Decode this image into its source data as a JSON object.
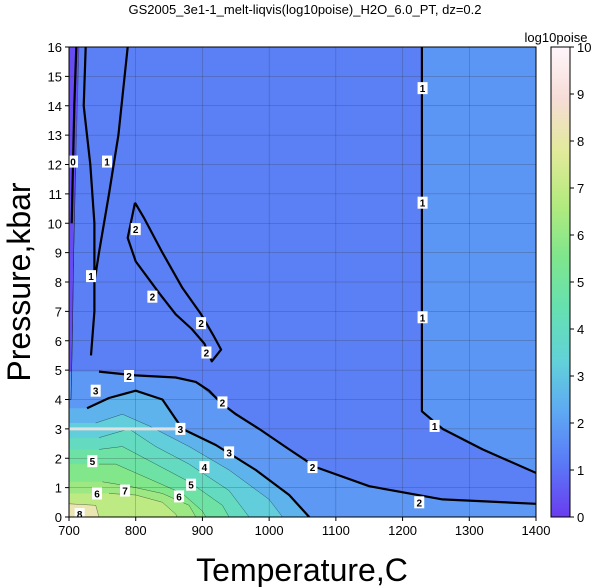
{
  "chart_data": {
    "type": "heatmap",
    "title": "GS2005_3e1-1_melt-liqvis(log10poise)_H2O_6.0_PT, dz=0.2",
    "xlabel": "Temperature,C",
    "ylabel": "Pressure,kbar",
    "xlim": [
      700,
      1400
    ],
    "ylim": [
      0,
      16
    ],
    "xticks": [
      700,
      800,
      900,
      1000,
      1100,
      1200,
      1300,
      1400
    ],
    "yticks": [
      0,
      1,
      2,
      3,
      4,
      5,
      6,
      7,
      8,
      9,
      10,
      11,
      12,
      13,
      14,
      15,
      16
    ],
    "grid": true,
    "colorbar": {
      "label": "log10poise",
      "range": [
        0,
        10
      ],
      "ticks": [
        0,
        1,
        2,
        3,
        4,
        5,
        6,
        7,
        8,
        9,
        10
      ],
      "colors": [
        "#6a3cf0",
        "#5a78f6",
        "#5ea8f4",
        "#62d2d8",
        "#66e0b0",
        "#80e68c",
        "#b4ea7e",
        "#e2ea9a",
        "#f6dcd6",
        "#fff6fb"
      ]
    },
    "contour_labels": [
      {
        "text": "1",
        "T": 1230,
        "P": 14.6
      },
      {
        "text": "1",
        "T": 1230,
        "P": 10.7
      },
      {
        "text": "1",
        "T": 1230,
        "P": 6.8
      },
      {
        "text": "1",
        "T": 1248,
        "P": 3.1
      },
      {
        "text": "1",
        "T": 757,
        "P": 12.1
      },
      {
        "text": "1",
        "T": 733,
        "P": 8.2
      },
      {
        "text": "0",
        "T": 706,
        "P": 12.1
      },
      {
        "text": "2",
        "T": 800,
        "P": 9.8
      },
      {
        "text": "2",
        "T": 825,
        "P": 7.5
      },
      {
        "text": "2",
        "T": 898,
        "P": 6.6
      },
      {
        "text": "2",
        "T": 906,
        "P": 5.6
      },
      {
        "text": "2",
        "T": 790,
        "P": 4.8
      },
      {
        "text": "2",
        "T": 930,
        "P": 3.9
      },
      {
        "text": "2",
        "T": 1065,
        "P": 1.7
      },
      {
        "text": "2",
        "T": 1225,
        "P": 0.5
      },
      {
        "text": "3",
        "T": 740,
        "P": 4.3
      },
      {
        "text": "3",
        "T": 867,
        "P": 3.0
      },
      {
        "text": "3",
        "T": 940,
        "P": 2.2
      },
      {
        "text": "4",
        "T": 903,
        "P": 1.7
      },
      {
        "text": "5",
        "T": 735,
        "P": 1.9
      },
      {
        "text": "5",
        "T": 883,
        "P": 1.1
      },
      {
        "text": "6",
        "T": 742,
        "P": 0.8
      },
      {
        "text": "6",
        "T": 865,
        "P": 0.7
      },
      {
        "text": "7",
        "T": 784,
        "P": 0.9
      },
      {
        "text": "8",
        "T": 716,
        "P": 0.1
      }
    ],
    "major_contours": [
      {
        "level": 1,
        "points": [
          [
            1229,
            16
          ],
          [
            1229,
            14
          ],
          [
            1229,
            10
          ],
          [
            1229,
            6
          ],
          [
            1229,
            3.6
          ],
          [
            1260,
            3.0
          ],
          [
            1320,
            2.3
          ],
          [
            1400,
            1.5
          ]
        ]
      },
      {
        "level": 1,
        "points": [
          [
            725,
            16
          ],
          [
            722,
            14
          ],
          [
            732,
            12
          ],
          [
            738,
            10
          ],
          [
            738,
            8
          ],
          [
            738,
            7
          ],
          [
            733,
            5.5
          ]
        ]
      },
      {
        "level": 1,
        "points": [
          [
            788,
            16
          ],
          [
            774,
            13
          ],
          [
            760,
            11
          ],
          [
            745,
            9
          ],
          [
            738,
            8
          ]
        ]
      },
      {
        "level": 0,
        "points": [
          [
            711,
            16
          ],
          [
            708,
            14
          ],
          [
            706,
            12
          ],
          [
            704,
            10
          ]
        ]
      },
      {
        "level": 2,
        "points": [
          [
            799,
            10.7
          ],
          [
            812,
            10.2
          ],
          [
            840,
            9.0
          ],
          [
            870,
            7.8
          ],
          [
            898,
            6.9
          ],
          [
            916,
            6.2
          ],
          [
            928,
            5.7
          ],
          [
            914,
            5.3
          ],
          [
            903,
            5.9
          ],
          [
            884,
            6.4
          ],
          [
            860,
            6.9
          ],
          [
            836,
            7.6
          ],
          [
            800,
            8.7
          ],
          [
            788,
            9.5
          ],
          [
            799,
            10.7
          ]
        ]
      },
      {
        "level": 2,
        "points": [
          [
            745,
            4.95
          ],
          [
            800,
            4.82
          ],
          [
            860,
            4.75
          ],
          [
            890,
            4.6
          ],
          [
            910,
            4.3
          ],
          [
            927,
            3.9
          ],
          [
            950,
            3.5
          ],
          [
            985,
            3.0
          ],
          [
            1030,
            2.3
          ],
          [
            1070,
            1.7
          ],
          [
            1150,
            1.05
          ],
          [
            1260,
            0.6
          ],
          [
            1400,
            0.45
          ]
        ]
      },
      {
        "level": 3,
        "points": [
          [
            727,
            3.7
          ],
          [
            760,
            4.05
          ],
          [
            800,
            4.3
          ],
          [
            840,
            4.0
          ],
          [
            870,
            3.0
          ],
          [
            920,
            2.45
          ],
          [
            980,
            1.6
          ],
          [
            1030,
            0.75
          ],
          [
            1060,
            0
          ]
        ]
      }
    ],
    "zones": [
      {
        "level": 0.3,
        "points": [
          [
            700,
            16
          ],
          [
            715,
            16
          ],
          [
            710,
            12
          ],
          [
            707,
            9
          ],
          [
            705,
            6
          ],
          [
            703,
            4
          ],
          [
            700,
            4
          ]
        ]
      },
      {
        "level": 1.3,
        "points": [
          [
            715,
            16
          ],
          [
            1400,
            16
          ],
          [
            1400,
            4
          ],
          [
            1400,
            0
          ],
          [
            700,
            0
          ],
          [
            700,
            4
          ],
          [
            703,
            4
          ],
          [
            705,
            6
          ],
          [
            707,
            9
          ],
          [
            710,
            12
          ]
        ]
      },
      {
        "level": 1.8,
        "points": [
          [
            1400,
            1.5
          ],
          [
            1320,
            2.3
          ],
          [
            1260,
            3.0
          ],
          [
            1229,
            3.6
          ],
          [
            1229,
            16
          ],
          [
            1400,
            16
          ]
        ]
      },
      {
        "level": 1.85,
        "points": [
          [
            745,
            4.95
          ],
          [
            800,
            4.82
          ],
          [
            860,
            4.75
          ],
          [
            890,
            4.6
          ],
          [
            927,
            3.9
          ],
          [
            985,
            3.0
          ],
          [
            1070,
            1.7
          ],
          [
            1150,
            1.05
          ],
          [
            1260,
            0.6
          ],
          [
            1400,
            0.45
          ],
          [
            1400,
            0
          ],
          [
            700,
            0
          ],
          [
            700,
            4.95
          ]
        ]
      },
      {
        "level": 2.5,
        "points": [
          [
            727,
            3.7
          ],
          [
            760,
            4.05
          ],
          [
            800,
            4.3
          ],
          [
            840,
            4.0
          ],
          [
            870,
            3.0
          ],
          [
            920,
            2.45
          ],
          [
            980,
            1.6
          ],
          [
            1030,
            0.75
          ],
          [
            1060,
            0
          ],
          [
            700,
            0
          ],
          [
            700,
            3.7
          ]
        ]
      },
      {
        "level": 3.2,
        "points": [
          [
            740,
            3.2
          ],
          [
            780,
            3.5
          ],
          [
            820,
            3.1
          ],
          [
            880,
            2.4
          ],
          [
            940,
            1.6
          ],
          [
            1000,
            0.6
          ],
          [
            1020,
            0
          ],
          [
            700,
            0
          ],
          [
            700,
            3.2
          ]
        ]
      },
      {
        "level": 4.0,
        "points": [
          [
            745,
            2.7
          ],
          [
            790,
            3.0
          ],
          [
            830,
            2.4
          ],
          [
            880,
            1.8
          ],
          [
            940,
            0.9
          ],
          [
            970,
            0
          ],
          [
            700,
            0
          ],
          [
            700,
            2.7
          ]
        ]
      },
      {
        "level": 4.8,
        "points": [
          [
            745,
            2.3
          ],
          [
            780,
            2.4
          ],
          [
            830,
            1.8
          ],
          [
            880,
            1.2
          ],
          [
            930,
            0.4
          ],
          [
            940,
            0
          ],
          [
            700,
            0
          ],
          [
            700,
            2.3
          ]
        ]
      },
      {
        "level": 5.6,
        "points": [
          [
            745,
            1.8
          ],
          [
            770,
            1.8
          ],
          [
            820,
            1.3
          ],
          [
            870,
            0.8
          ],
          [
            900,
            0.2
          ],
          [
            905,
            0
          ],
          [
            700,
            0
          ],
          [
            700,
            1.8
          ]
        ]
      },
      {
        "level": 6.2,
        "points": [
          [
            750,
            1.2
          ],
          [
            790,
            1.05
          ],
          [
            840,
            0.8
          ],
          [
            880,
            0.4
          ],
          [
            890,
            0
          ],
          [
            700,
            0
          ],
          [
            700,
            1.2
          ]
        ]
      },
      {
        "level": 6.9,
        "points": [
          [
            760,
            0.8
          ],
          [
            800,
            0.75
          ],
          [
            840,
            0.5
          ],
          [
            860,
            0.1
          ],
          [
            862,
            0
          ],
          [
            700,
            0
          ],
          [
            700,
            0.8
          ]
        ]
      },
      {
        "level": 8.2,
        "points": [
          [
            700,
            0.45
          ],
          [
            740,
            0.4
          ],
          [
            745,
            0
          ],
          [
            700,
            0
          ]
        ]
      }
    ],
    "white_line": {
      "P": 3.0,
      "T": [
        700,
        860
      ]
    }
  }
}
